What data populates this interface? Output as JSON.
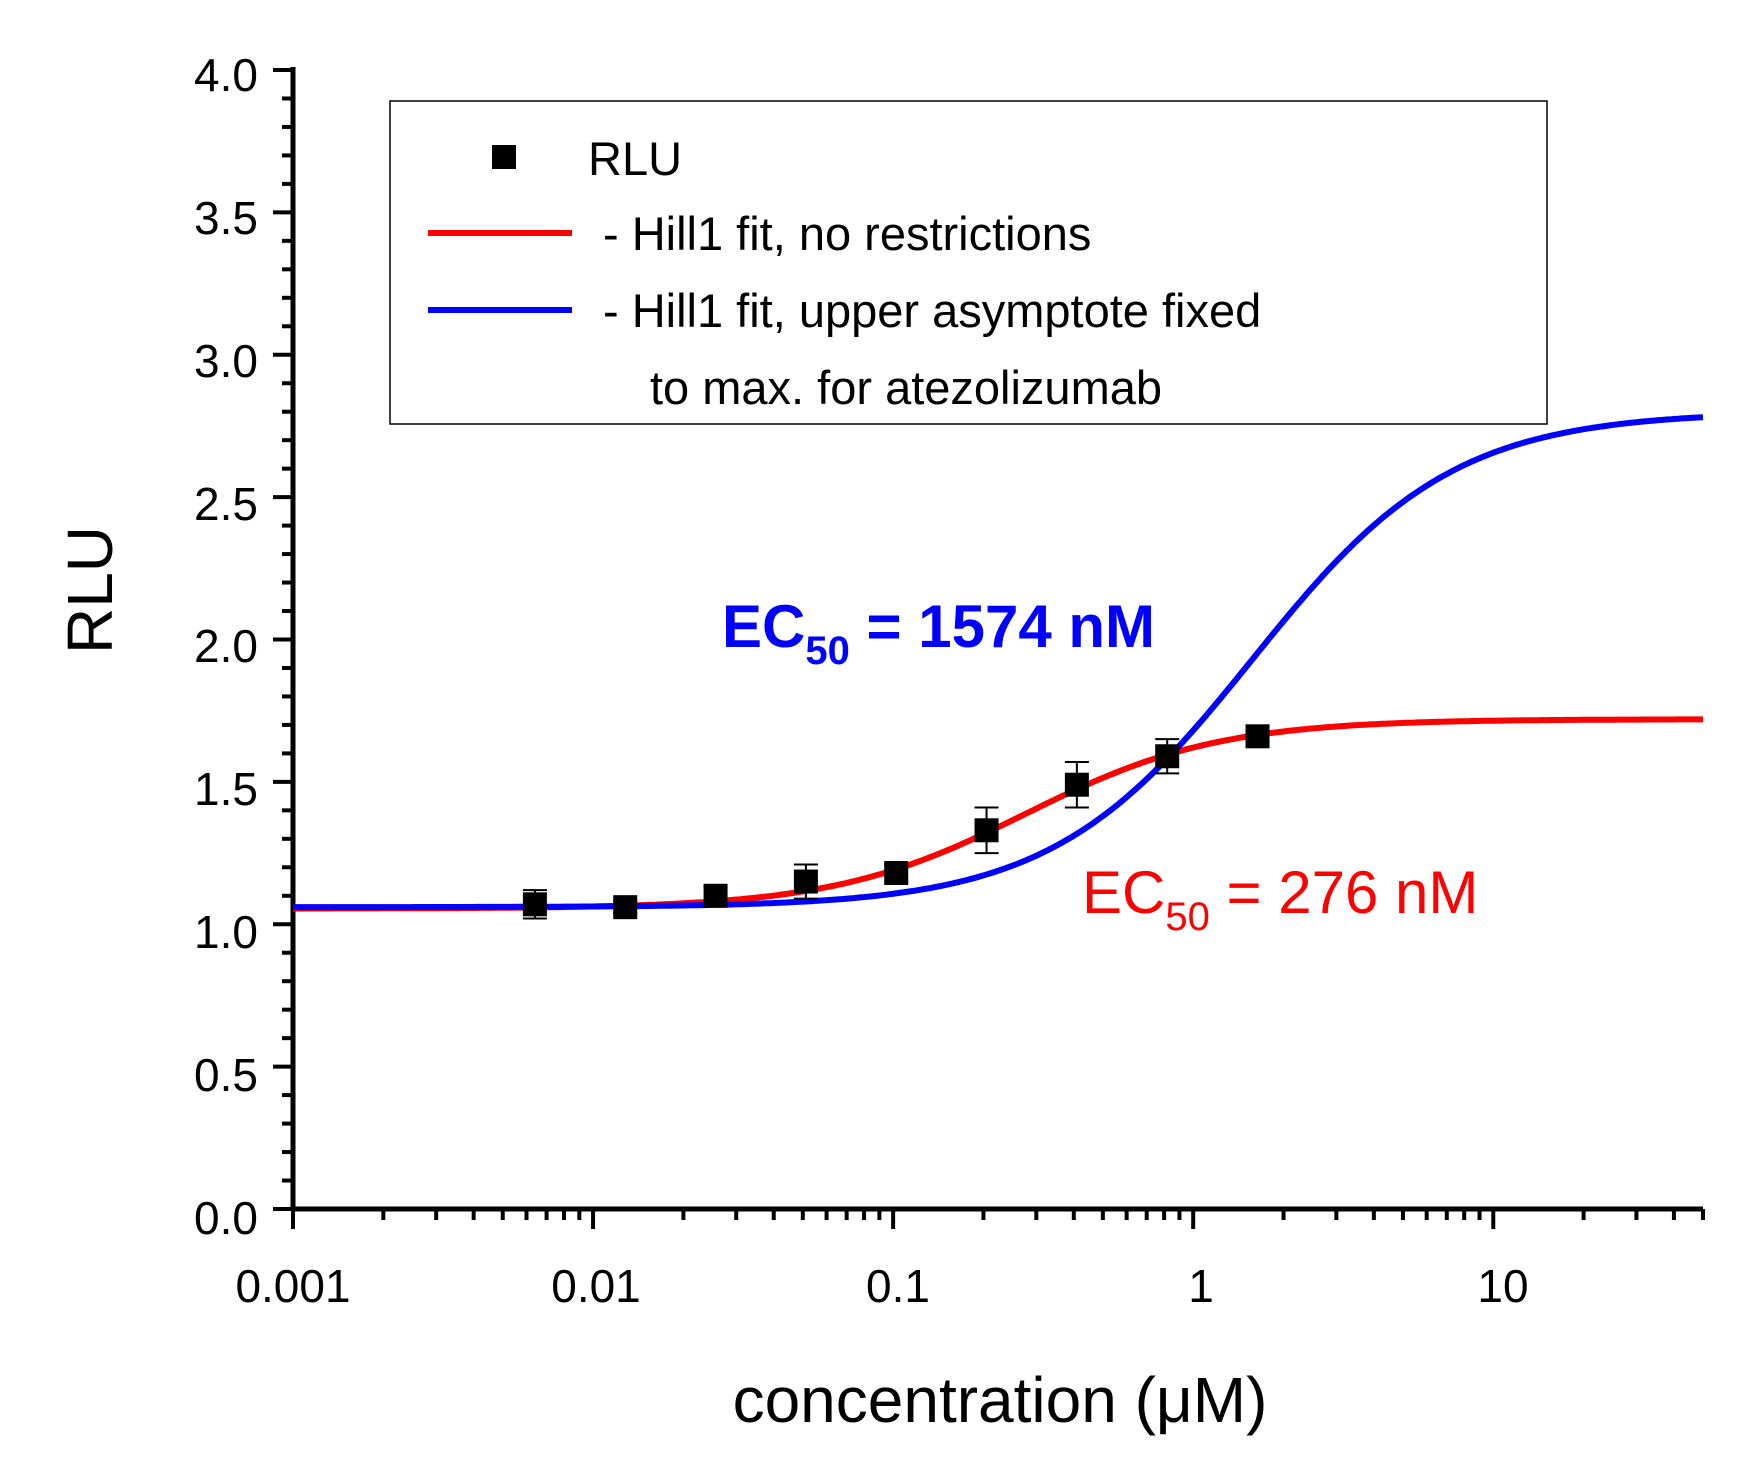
{
  "chart_data": {
    "type": "scatter",
    "xscale": "log",
    "xlim": [
      0.001,
      50
    ],
    "ylim": [
      0.0,
      4.0
    ],
    "xlabel": "concentration (μM)",
    "ylabel": "RLU",
    "x_ticks": [
      "0.001",
      "0.01",
      "0.1",
      "1",
      "10"
    ],
    "y_ticks": [
      "0.0",
      "0.5",
      "1.0",
      "1.5",
      "2.0",
      "2.5",
      "3.0",
      "3.5",
      "4.0"
    ],
    "legend_position": "top",
    "series": [
      {
        "name": "RLU",
        "kind": "points",
        "color": "#000000",
        "x": [
          0.0064,
          0.0128,
          0.0256,
          0.0512,
          0.1024,
          0.2048,
          0.4096,
          0.8192,
          1.6384
        ],
        "y": [
          1.07,
          1.06,
          1.1,
          1.15,
          1.18,
          1.33,
          1.49,
          1.59,
          1.66
        ],
        "yerr": [
          0.05,
          0.02,
          0.03,
          0.06,
          0.03,
          0.08,
          0.08,
          0.06,
          0.02
        ]
      },
      {
        "name": "- Hill1 fit, no restrictions",
        "kind": "curve",
        "color": "#ff0000",
        "model": "hill1",
        "bottom": 1.055,
        "top": 1.72,
        "ec50": 0.276,
        "n": 1.35
      },
      {
        "name": "- Hill1 fit, upper asymptote fixed",
        "name_line2": "to max. for atezolizumab",
        "kind": "curve",
        "color": "#0000ff",
        "model": "hill1",
        "bottom": 1.06,
        "top": 2.8,
        "ec50": 1.574,
        "n": 1.3
      }
    ],
    "annotations": [
      {
        "base": "EC",
        "sub": "50",
        "rest": " = 1574 nM",
        "color": "#0000ff"
      },
      {
        "base": "EC",
        "sub": "50",
        "rest": " = 276 nM",
        "color": "#ff0000"
      }
    ]
  }
}
